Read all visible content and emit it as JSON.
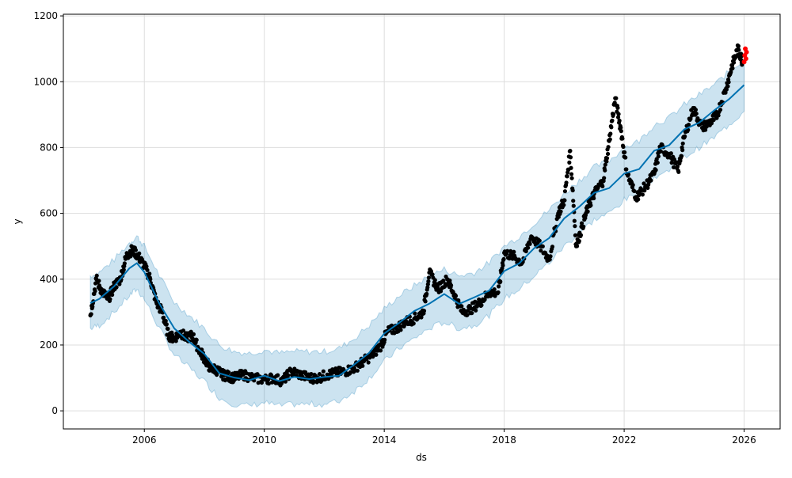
{
  "chart_data": {
    "type": "line",
    "title": "",
    "xlabel": "ds",
    "ylabel": "y",
    "xlim": [
      2003.3,
      2027.2
    ],
    "ylim": [
      -55,
      1205
    ],
    "grid": true,
    "x_ticks": [
      "2006",
      "2010",
      "2014",
      "2018",
      "2022",
      "2026"
    ],
    "x_tick_values": [
      2006,
      2010,
      2014,
      2018,
      2022,
      2026
    ],
    "y_ticks": [
      "0",
      "200",
      "400",
      "600",
      "800",
      "1000",
      "1200"
    ],
    "y_tick_values": [
      0,
      200,
      400,
      600,
      800,
      1000,
      1200
    ],
    "colors": {
      "observed": "#000000",
      "forecast_points": "#ff0000",
      "yhat": "#0072B2",
      "interval": "#0072B2"
    },
    "interval_half_width": 80,
    "yhat": [
      [
        2004.2,
        330
      ],
      [
        2004.5,
        340
      ],
      [
        2005,
        380
      ],
      [
        2005.5,
        430
      ],
      [
        2005.75,
        450
      ],
      [
        2006,
        420
      ],
      [
        2006.5,
        330
      ],
      [
        2007,
        250
      ],
      [
        2007.5,
        210
      ],
      [
        2008,
        170
      ],
      [
        2008.5,
        120
      ],
      [
        2009,
        100
      ],
      [
        2009.5,
        95
      ],
      [
        2010,
        105
      ],
      [
        2010.5,
        95
      ],
      [
        2011,
        100
      ],
      [
        2011.5,
        100
      ],
      [
        2012,
        100
      ],
      [
        2012.5,
        110
      ],
      [
        2013,
        140
      ],
      [
        2013.5,
        180
      ],
      [
        2014,
        230
      ],
      [
        2014.5,
        270
      ],
      [
        2015,
        300
      ],
      [
        2015.5,
        330
      ],
      [
        2016,
        350
      ],
      [
        2016.5,
        330
      ],
      [
        2017,
        340
      ],
      [
        2017.5,
        370
      ],
      [
        2018,
        420
      ],
      [
        2018.5,
        450
      ],
      [
        2019,
        490
      ],
      [
        2019.5,
        530
      ],
      [
        2020,
        580
      ],
      [
        2020.5,
        620
      ],
      [
        2021,
        660
      ],
      [
        2021.5,
        680
      ],
      [
        2022,
        720
      ],
      [
        2022.5,
        740
      ],
      [
        2023,
        790
      ],
      [
        2023.5,
        810
      ],
      [
        2024,
        850
      ],
      [
        2024.5,
        880
      ],
      [
        2025,
        910
      ],
      [
        2025.5,
        950
      ],
      [
        2026,
        990
      ]
    ],
    "observed": [
      [
        2004.2,
        290
      ],
      [
        2004.4,
        400
      ],
      [
        2004.6,
        360
      ],
      [
        2004.8,
        340
      ],
      [
        2005.0,
        380
      ],
      [
        2005.2,
        400
      ],
      [
        2005.4,
        470
      ],
      [
        2005.6,
        490
      ],
      [
        2005.8,
        470
      ],
      [
        2006.0,
        440
      ],
      [
        2006.2,
        400
      ],
      [
        2006.4,
        330
      ],
      [
        2006.6,
        300
      ],
      [
        2006.8,
        230
      ],
      [
        2007.0,
        220
      ],
      [
        2007.2,
        240
      ],
      [
        2007.4,
        220
      ],
      [
        2007.6,
        230
      ],
      [
        2007.8,
        190
      ],
      [
        2008.0,
        160
      ],
      [
        2008.2,
        130
      ],
      [
        2008.4,
        125
      ],
      [
        2008.6,
        110
      ],
      [
        2008.8,
        105
      ],
      [
        2009.0,
        100
      ],
      [
        2009.3,
        110
      ],
      [
        2009.6,
        100
      ],
      [
        2010.0,
        95
      ],
      [
        2010.3,
        100
      ],
      [
        2010.6,
        90
      ],
      [
        2010.9,
        120
      ],
      [
        2011.2,
        110
      ],
      [
        2011.5,
        100
      ],
      [
        2011.8,
        100
      ],
      [
        2012.1,
        110
      ],
      [
        2012.4,
        115
      ],
      [
        2012.7,
        120
      ],
      [
        2013.0,
        130
      ],
      [
        2013.3,
        150
      ],
      [
        2013.6,
        170
      ],
      [
        2013.9,
        200
      ],
      [
        2014.1,
        240
      ],
      [
        2014.4,
        250
      ],
      [
        2014.7,
        270
      ],
      [
        2015.0,
        280
      ],
      [
        2015.3,
        300
      ],
      [
        2015.5,
        420
      ],
      [
        2015.8,
        370
      ],
      [
        2016.1,
        400
      ],
      [
        2016.3,
        360
      ],
      [
        2016.6,
        300
      ],
      [
        2016.9,
        310
      ],
      [
        2017.2,
        330
      ],
      [
        2017.5,
        360
      ],
      [
        2017.8,
        360
      ],
      [
        2018.0,
        480
      ],
      [
        2018.3,
        470
      ],
      [
        2018.6,
        450
      ],
      [
        2018.9,
        530
      ],
      [
        2019.2,
        500
      ],
      [
        2019.5,
        460
      ],
      [
        2019.8,
        600
      ],
      [
        2020.0,
        640
      ],
      [
        2020.2,
        790
      ],
      [
        2020.4,
        500
      ],
      [
        2020.6,
        560
      ],
      [
        2020.8,
        620
      ],
      [
        2021.0,
        660
      ],
      [
        2021.3,
        700
      ],
      [
        2021.5,
        820
      ],
      [
        2021.7,
        950
      ],
      [
        2021.9,
        850
      ],
      [
        2022.1,
        720
      ],
      [
        2022.4,
        650
      ],
      [
        2022.7,
        680
      ],
      [
        2023.0,
        720
      ],
      [
        2023.2,
        800
      ],
      [
        2023.5,
        780
      ],
      [
        2023.8,
        730
      ],
      [
        2024.0,
        830
      ],
      [
        2024.3,
        920
      ],
      [
        2024.6,
        860
      ],
      [
        2024.9,
        880
      ],
      [
        2025.1,
        900
      ],
      [
        2025.4,
        980
      ],
      [
        2025.6,
        1050
      ],
      [
        2025.8,
        1100
      ],
      [
        2025.95,
        1060
      ]
    ],
    "forecast_points": [
      [
        2026.0,
        1060
      ],
      [
        2026.02,
        1080
      ],
      [
        2026.04,
        1100
      ],
      [
        2026.06,
        1070
      ],
      [
        2026.08,
        1090
      ]
    ]
  }
}
